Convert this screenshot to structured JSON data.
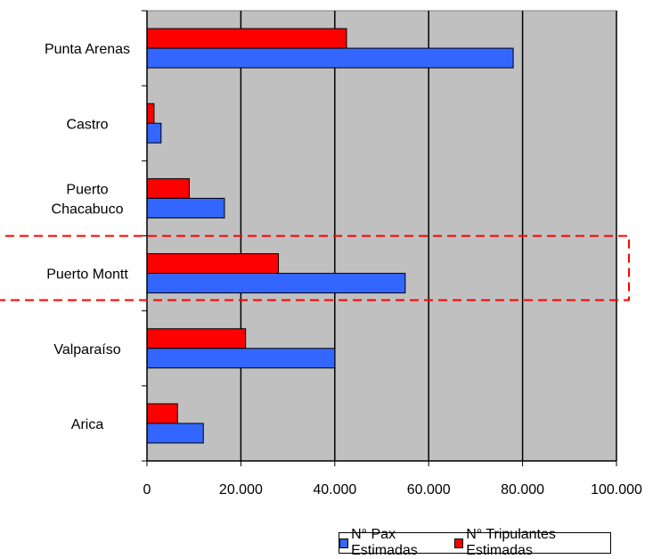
{
  "chart_data": {
    "type": "bar",
    "orientation": "horizontal",
    "categories": [
      "Punta Arenas",
      "Castro",
      "Puerto Chacabuco",
      "Puerto Montt",
      "Valparaíso",
      "Arica"
    ],
    "category_lines": [
      [
        "Punta Arenas"
      ],
      [
        "Castro"
      ],
      [
        "Puerto",
        "Chacabuco"
      ],
      [
        "Puerto Montt"
      ],
      [
        "Valparaíso"
      ],
      [
        "Arica"
      ]
    ],
    "series": [
      {
        "name": "N° Tripulantes Estimadas",
        "color": "#ff0000",
        "values": [
          42500,
          1500,
          9000,
          28000,
          21000,
          6500
        ]
      },
      {
        "name": "N° Pax Estimadas",
        "color": "#3366ff",
        "values": [
          78000,
          3000,
          16500,
          55000,
          40000,
          12000
        ]
      }
    ],
    "xlim": [
      0,
      100000
    ],
    "xticks": [
      0,
      20000,
      40000,
      60000,
      80000,
      100000
    ],
    "xtick_labels": [
      "0",
      "20.000",
      "40.000",
      "60.000",
      "80.000",
      "100.000"
    ],
    "grid": true,
    "plot_background": "#c0c0c0",
    "highlighted_category": "Puerto Montt",
    "highlight_color": "#ff0000",
    "legend_position": "bottom",
    "title": "",
    "xlabel": "",
    "ylabel": ""
  },
  "legend": {
    "items": [
      {
        "label": "N° Pax Estimadas",
        "color": "#3366ff"
      },
      {
        "label": "N° Tripulantes Estimadas",
        "color": "#ff0000"
      }
    ]
  }
}
